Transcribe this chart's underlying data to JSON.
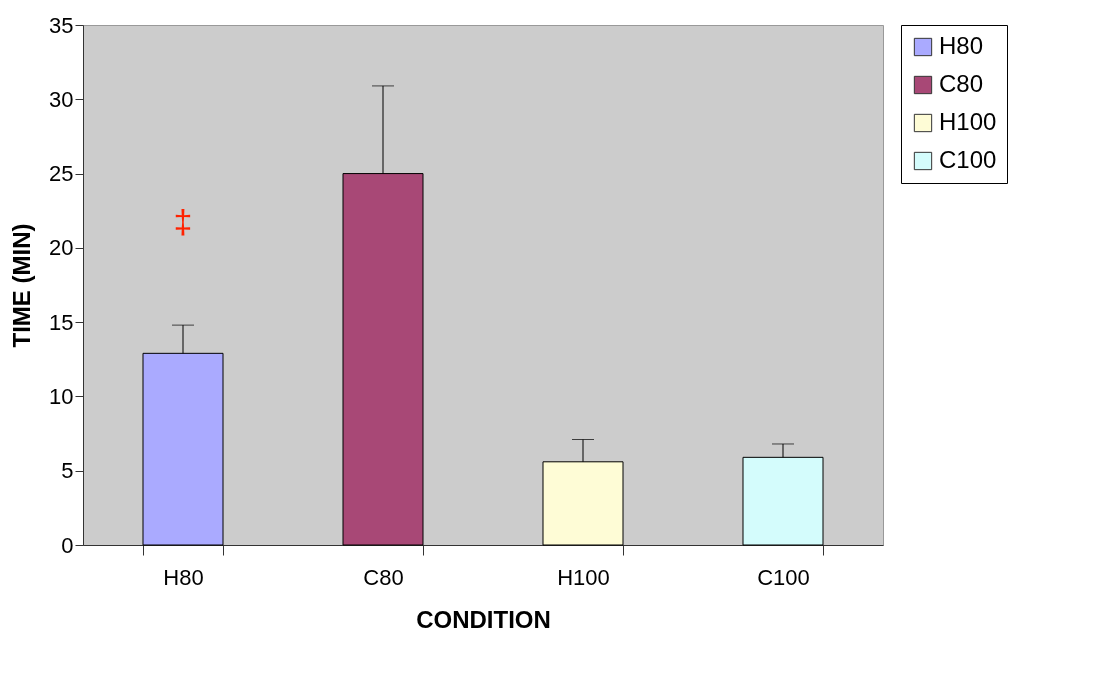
{
  "chart_data": {
    "type": "bar",
    "categories": [
      "H80",
      "C80",
      "H100",
      "C100"
    ],
    "series": [
      {
        "name": "H80",
        "color": "#aaaaff",
        "values": [
          12.9,
          null,
          null,
          null
        ],
        "errors": [
          [
            12.9,
            14.8
          ],
          null,
          null,
          null
        ]
      },
      {
        "name": "C80",
        "color": "#a84876",
        "values": [
          null,
          25.0,
          null,
          null
        ],
        "errors": [
          null,
          [
            25.0,
            30.9
          ],
          null,
          null
        ]
      },
      {
        "name": "H100",
        "color": "#fefcd6",
        "values": [
          null,
          null,
          5.6,
          null
        ],
        "errors": [
          null,
          null,
          [
            5.6,
            7.1
          ],
          null
        ]
      },
      {
        "name": "C100",
        "color": "#d4fcfc",
        "values": [
          null,
          null,
          null,
          5.9
        ],
        "errors": [
          null,
          null,
          null,
          [
            5.9,
            6.8
          ]
        ]
      }
    ],
    "xlabel": "CONDITION",
    "ylabel": "TIME (MIN)",
    "ylim": [
      0,
      35
    ],
    "yticks": [
      0,
      5,
      10,
      15,
      20,
      25,
      30,
      35
    ],
    "grid": false,
    "legend": "right",
    "annotations": [
      "‡"
    ]
  }
}
